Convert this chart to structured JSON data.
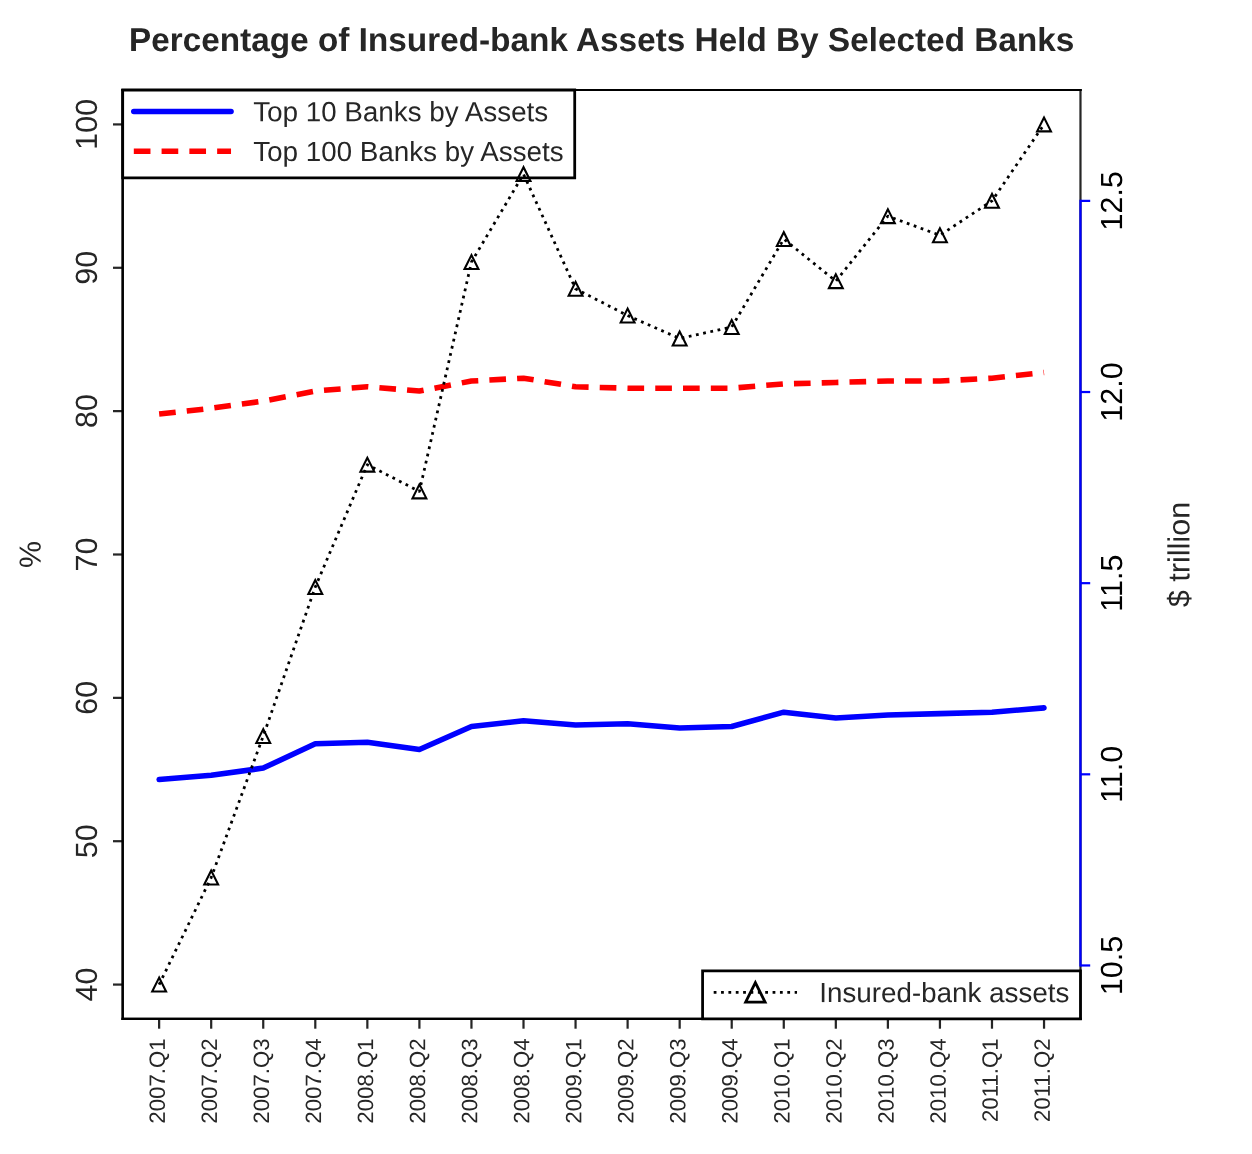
{
  "chart_data": {
    "type": "line",
    "title": "Percentage of Insured-bank Assets Held By Selected Banks",
    "ylabel": "%",
    "y2label": "$ trillion",
    "categories": [
      "2007.Q1",
      "2007.Q2",
      "2007.Q3",
      "2007.Q4",
      "2008.Q1",
      "2008.Q2",
      "2008.Q3",
      "2008.Q4",
      "2009.Q1",
      "2009.Q2",
      "2009.Q3",
      "2009.Q4",
      "2010.Q1",
      "2010.Q2",
      "2010.Q3",
      "2010.Q4",
      "2011.Q1",
      "2011.Q2"
    ],
    "series": [
      {
        "name": "Top 10 Banks by Assets",
        "color": "#0000ff",
        "line_style": "solid",
        "marker": "none",
        "values": [
          54.3,
          54.6,
          55.1,
          56.8,
          56.9,
          56.4,
          58.0,
          58.4,
          58.1,
          58.2,
          57.9,
          58.0,
          59.0,
          58.6,
          58.8,
          58.9,
          59.0,
          59.3
        ]
      },
      {
        "name": "Top 100 Banks by Assets",
        "color": "#ff0000",
        "line_style": "dashed",
        "marker": "none",
        "values": [
          79.8,
          80.2,
          80.7,
          81.4,
          81.7,
          81.4,
          82.1,
          82.3,
          81.7,
          81.6,
          81.6,
          81.6,
          81.9,
          82.0,
          82.1,
          82.1,
          82.3,
          82.7
        ]
      },
      {
        "name": "Insured-bank assets",
        "color": "#000000",
        "line_style": "dotted",
        "marker": "triangle",
        "axis": "y2",
        "values": [
          10.45,
          10.73,
          11.1,
          11.49,
          11.81,
          11.74,
          12.34,
          12.57,
          12.27,
          12.2,
          12.14,
          12.17,
          12.4,
          12.29,
          12.46,
          12.41,
          12.5,
          12.7
        ]
      }
    ],
    "ylim": [
      37.6,
      102.4
    ],
    "yticks": [
      40,
      50,
      60,
      70,
      80,
      90,
      100
    ],
    "y2lim": [
      10.36,
      12.79
    ],
    "y2ticks": [
      {
        "value": 10.5,
        "label": "10.5"
      },
      {
        "value": 11.0,
        "label": "11.0"
      },
      {
        "value": 11.5,
        "label": "11.5"
      },
      {
        "value": 12.0,
        "label": "12.0"
      },
      {
        "value": 12.5,
        "label": "12.5"
      }
    ],
    "legend": "top left",
    "grid": false
  }
}
